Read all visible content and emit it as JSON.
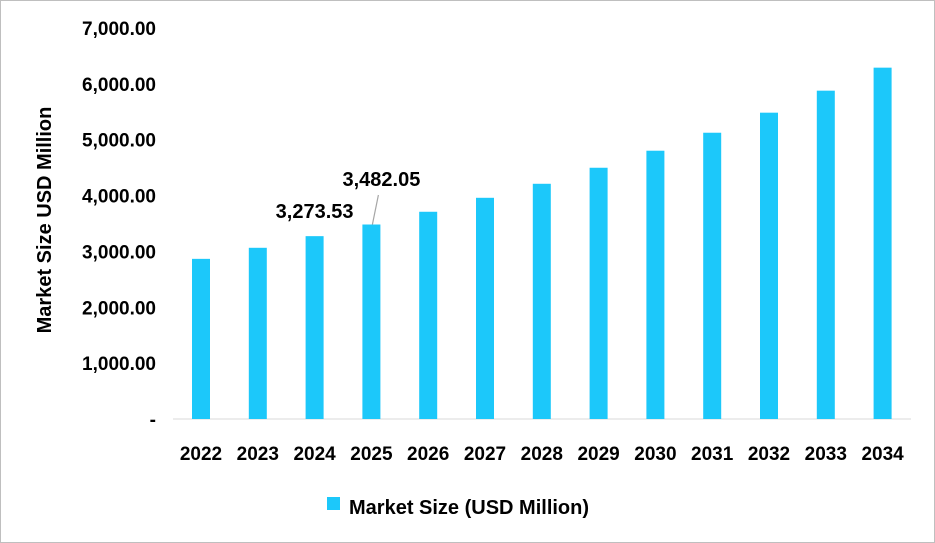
{
  "chart_data": {
    "type": "bar",
    "title": "",
    "xlabel": "",
    "ylabel": "Market Size USD Million",
    "categories": [
      "2022",
      "2023",
      "2024",
      "2025",
      "2026",
      "2027",
      "2028",
      "2029",
      "2030",
      "2031",
      "2032",
      "2033",
      "2034"
    ],
    "series": [
      {
        "name": "Market Size (USD Million)",
        "color": "#1CC8FA",
        "values": [
          2867,
          3065,
          3273.53,
          3482.05,
          3710,
          3960,
          4211,
          4498,
          4803,
          5125,
          5484,
          5878,
          6290
        ]
      }
    ],
    "data_labels": [
      {
        "category": "2024",
        "text": "3,273.53"
      },
      {
        "category": "2025",
        "text": "3,482.05"
      }
    ],
    "ylim": [
      0,
      7000
    ],
    "yticks": [
      "-",
      "1,000.00",
      "2,000.00",
      "3,000.00",
      "4,000.00",
      "5,000.00",
      "6,000.00",
      "7,000.00"
    ],
    "grid": false,
    "legend": "bottom"
  }
}
